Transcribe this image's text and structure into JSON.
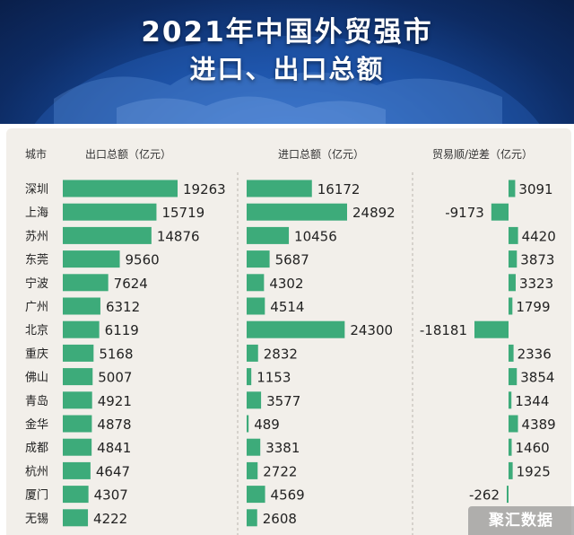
{
  "header": {
    "title_line1": "2021年中国外贸强市",
    "title_line2": "进口、出口总额"
  },
  "watermark": "聚汇数据",
  "colors": {
    "bar": "#3dab7a",
    "banner": "#174a9c",
    "panel": "#f2efea",
    "text": "#222222"
  },
  "chart_data": {
    "type": "bar",
    "column_headers": [
      "城市",
      "出口总额（亿元）",
      "进口总额（亿元）",
      "贸易顺/逆差（亿元）"
    ],
    "categories": [
      "深圳",
      "上海",
      "苏州",
      "东莞",
      "宁波",
      "广州",
      "北京",
      "重庆",
      "佛山",
      "青岛",
      "金华",
      "成都",
      "杭州",
      "厦门",
      "无锡"
    ],
    "series": [
      {
        "name": "出口总额（亿元）",
        "values": [
          19263,
          15719,
          14876,
          9560,
          7624,
          6312,
          6119,
          5168,
          5007,
          4921,
          4878,
          4841,
          4647,
          4307,
          4222
        ]
      },
      {
        "name": "进口总额（亿元）",
        "values": [
          16172,
          24892,
          10456,
          5687,
          4302,
          4514,
          24300,
          2832,
          1153,
          3577,
          489,
          3381,
          2722,
          4569,
          2608
        ]
      },
      {
        "name": "贸易顺/逆差（亿元）",
        "values": [
          3091,
          -9173,
          4420,
          3873,
          3323,
          1799,
          -18181,
          2336,
          3854,
          1344,
          4389,
          1460,
          1925,
          -262,
          null
        ]
      }
    ],
    "grid": false,
    "legend": "none"
  }
}
